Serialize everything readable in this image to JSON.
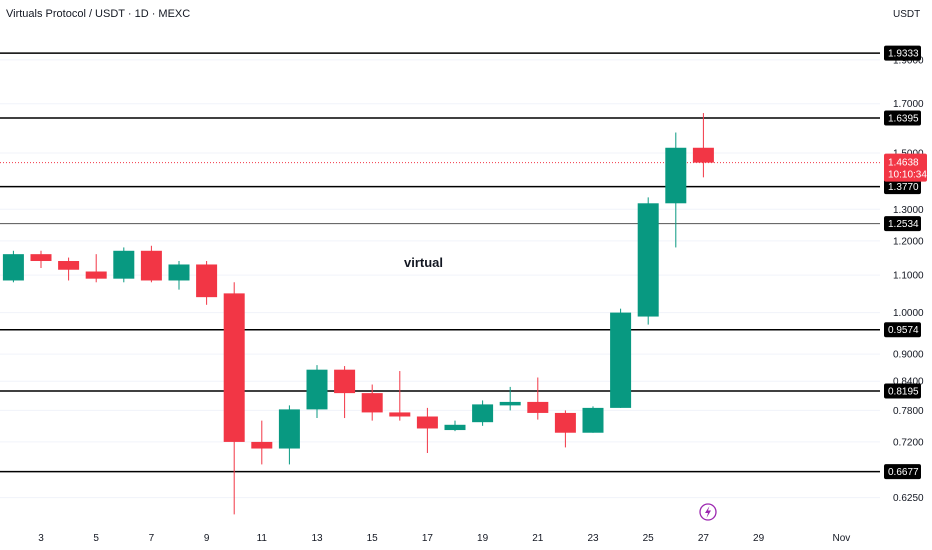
{
  "title": "Virtuals Protocol / USDT · 1D · MEXC",
  "currency": "USDT",
  "annotation": "virtual",
  "colors": {
    "up": "#089981",
    "down": "#f23645",
    "level": "#000000",
    "current": "#f23645"
  },
  "chart_data": {
    "type": "candlestick",
    "y_scale": "log",
    "ylim": [
      0.598,
      2.05
    ],
    "y_ticks": [
      "1.9000",
      "1.7000",
      "1.5000",
      "1.3000",
      "1.2000",
      "1.1000",
      "1.0000",
      "0.9000",
      "0.8400",
      "0.7800",
      "0.7200",
      "0.6250"
    ],
    "x_ticks": [
      {
        "label": "3",
        "day": 3
      },
      {
        "label": "5",
        "day": 5
      },
      {
        "label": "7",
        "day": 7
      },
      {
        "label": "9",
        "day": 9
      },
      {
        "label": "11",
        "day": 11
      },
      {
        "label": "13",
        "day": 13
      },
      {
        "label": "15",
        "day": 15
      },
      {
        "label": "17",
        "day": 17
      },
      {
        "label": "19",
        "day": 19
      },
      {
        "label": "21",
        "day": 21
      },
      {
        "label": "23",
        "day": 23
      },
      {
        "label": "25",
        "day": 25
      },
      {
        "label": "27",
        "day": 27
      },
      {
        "label": "29",
        "day": 29
      },
      {
        "label": "Nov",
        "day": 32
      }
    ],
    "candles": [
      {
        "day": 2,
        "o": 1.085,
        "h": 1.17,
        "l": 1.08,
        "c": 1.16
      },
      {
        "day": 3,
        "o": 1.16,
        "h": 1.17,
        "l": 1.12,
        "c": 1.14
      },
      {
        "day": 4,
        "o": 1.14,
        "h": 1.15,
        "l": 1.085,
        "c": 1.115
      },
      {
        "day": 5,
        "o": 1.11,
        "h": 1.16,
        "l": 1.08,
        "c": 1.09
      },
      {
        "day": 6,
        "o": 1.09,
        "h": 1.18,
        "l": 1.08,
        "c": 1.17
      },
      {
        "day": 7,
        "o": 1.17,
        "h": 1.185,
        "l": 1.08,
        "c": 1.085
      },
      {
        "day": 8,
        "o": 1.085,
        "h": 1.14,
        "l": 1.06,
        "c": 1.13
      },
      {
        "day": 9,
        "o": 1.13,
        "h": 1.14,
        "l": 1.02,
        "c": 1.04
      },
      {
        "day": 10,
        "o": 1.05,
        "h": 1.08,
        "l": 0.599,
        "c": 0.72
      },
      {
        "day": 11,
        "o": 0.72,
        "h": 0.76,
        "l": 0.68,
        "c": 0.708
      },
      {
        "day": 12,
        "o": 0.708,
        "h": 0.79,
        "l": 0.68,
        "c": 0.782
      },
      {
        "day": 13,
        "o": 0.782,
        "h": 0.875,
        "l": 0.765,
        "c": 0.865
      },
      {
        "day": 14,
        "o": 0.865,
        "h": 0.873,
        "l": 0.765,
        "c": 0.815
      },
      {
        "day": 15,
        "o": 0.815,
        "h": 0.833,
        "l": 0.76,
        "c": 0.776
      },
      {
        "day": 16,
        "o": 0.776,
        "h": 0.862,
        "l": 0.76,
        "c": 0.768
      },
      {
        "day": 17,
        "o": 0.768,
        "h": 0.785,
        "l": 0.7,
        "c": 0.745
      },
      {
        "day": 18,
        "o": 0.742,
        "h": 0.76,
        "l": 0.74,
        "c": 0.752
      },
      {
        "day": 19,
        "o": 0.757,
        "h": 0.8,
        "l": 0.75,
        "c": 0.792
      },
      {
        "day": 20,
        "o": 0.79,
        "h": 0.828,
        "l": 0.78,
        "c": 0.797
      },
      {
        "day": 21,
        "o": 0.797,
        "h": 0.848,
        "l": 0.762,
        "c": 0.775
      },
      {
        "day": 22,
        "o": 0.775,
        "h": 0.78,
        "l": 0.71,
        "c": 0.737
      },
      {
        "day": 23,
        "o": 0.737,
        "h": 0.788,
        "l": 0.737,
        "c": 0.785
      },
      {
        "day": 24,
        "o": 0.785,
        "h": 1.01,
        "l": 0.785,
        "c": 1.0
      },
      {
        "day": 25,
        "o": 0.99,
        "h": 1.34,
        "l": 0.97,
        "c": 1.32
      },
      {
        "day": 26,
        "o": 1.32,
        "h": 1.58,
        "l": 1.18,
        "c": 1.52
      },
      {
        "day": 27,
        "o": 1.52,
        "h": 1.66,
        "l": 1.41,
        "c": 1.4638
      }
    ],
    "levels": [
      "1.9333",
      "1.6395",
      "1.3770",
      "1.2534",
      "0.9574",
      "0.8195",
      "0.6677"
    ],
    "current_price": "1.4638",
    "countdown": "10:10:34"
  }
}
